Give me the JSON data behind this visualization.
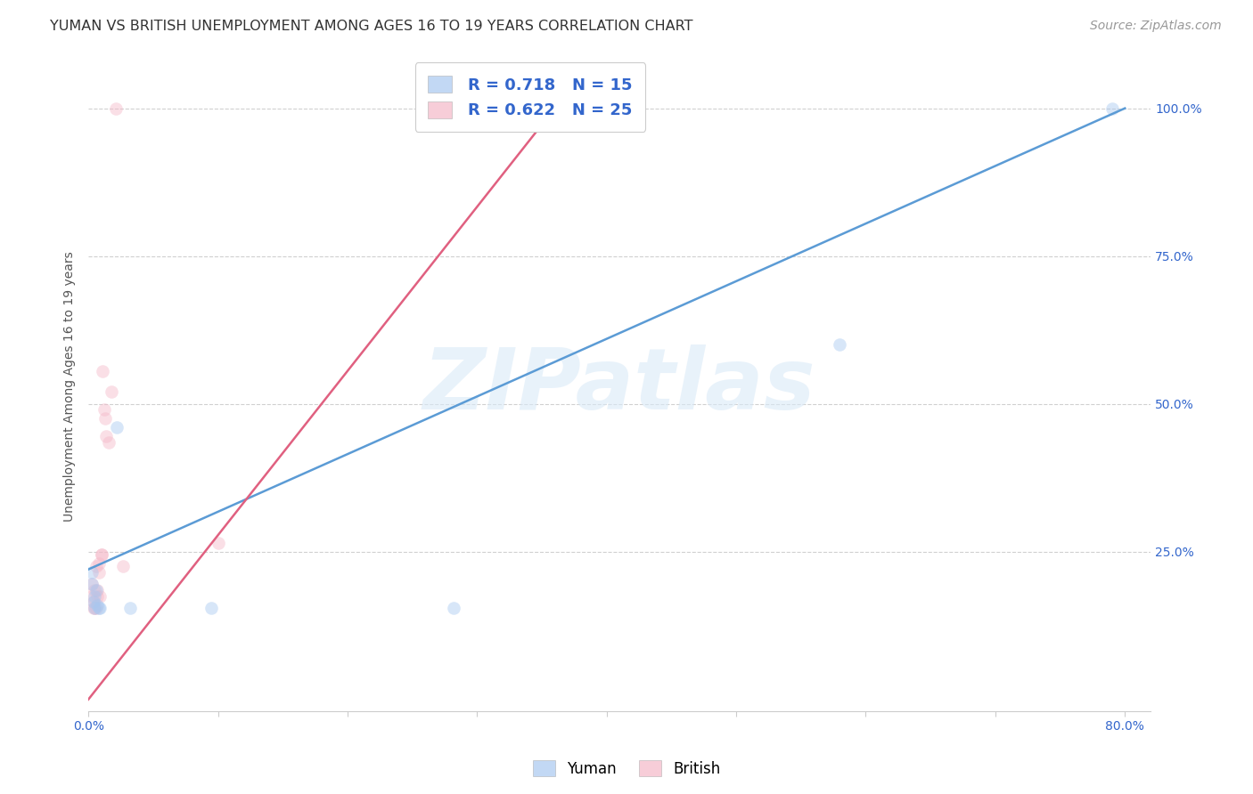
{
  "title": "YUMAN VS BRITISH UNEMPLOYMENT AMONG AGES 16 TO 19 YEARS CORRELATION CHART",
  "source": "Source: ZipAtlas.com",
  "ylabel": "Unemployment Among Ages 16 to 19 years",
  "xlim": [
    0.0,
    0.82
  ],
  "ylim": [
    -0.02,
    1.08
  ],
  "xticks": [
    0.0,
    0.1,
    0.2,
    0.3,
    0.4,
    0.5,
    0.6,
    0.7,
    0.8
  ],
  "xticklabels": [
    "0.0%",
    "",
    "",
    "",
    "",
    "",
    "",
    "",
    "80.0%"
  ],
  "ytick_positions": [
    0.25,
    0.5,
    0.75,
    1.0
  ],
  "ytick_labels": [
    "25.0%",
    "50.0%",
    "75.0%",
    "100.0%"
  ],
  "grid_color": "#d0d0d0",
  "background_color": "#ffffff",
  "watermark": "ZIPatlas",
  "yuman_color": "#a8c8f0",
  "british_color": "#f5b8c8",
  "yuman_line_color": "#5b9bd5",
  "british_line_color": "#e06080",
  "yuman_R": 0.718,
  "yuman_N": 15,
  "british_R": 0.622,
  "british_N": 25,
  "yuman_line_x0": 0.0,
  "yuman_line_y0": 0.22,
  "yuman_line_x1": 0.8,
  "yuman_line_y1": 1.0,
  "british_line_x0": 0.0,
  "british_line_y0": 0.0,
  "british_line_x1": 0.36,
  "british_line_y1": 1.0,
  "yuman_x": [
    0.003,
    0.003,
    0.004,
    0.005,
    0.006,
    0.007,
    0.008,
    0.022,
    0.032,
    0.095,
    0.282,
    0.58,
    0.79,
    0.005,
    0.009
  ],
  "yuman_y": [
    0.215,
    0.195,
    0.165,
    0.175,
    0.185,
    0.16,
    0.155,
    0.46,
    0.155,
    0.155,
    0.155,
    0.6,
    1.0,
    0.155,
    0.155
  ],
  "british_x": [
    0.003,
    0.003,
    0.004,
    0.005,
    0.005,
    0.006,
    0.007,
    0.008,
    0.008,
    0.009,
    0.01,
    0.011,
    0.012,
    0.013,
    0.014,
    0.016,
    0.018,
    0.021,
    0.027,
    0.1,
    0.36,
    0.004,
    0.007,
    0.01,
    0.006
  ],
  "british_y": [
    0.195,
    0.175,
    0.165,
    0.185,
    0.155,
    0.225,
    0.175,
    0.23,
    0.215,
    0.175,
    0.245,
    0.555,
    0.49,
    0.475,
    0.445,
    0.435,
    0.52,
    1.0,
    0.225,
    0.265,
    1.0,
    0.155,
    0.185,
    0.245,
    0.155
  ],
  "title_fontsize": 11.5,
  "axis_label_fontsize": 10,
  "tick_fontsize": 10,
  "legend_fontsize": 13,
  "source_fontsize": 10,
  "marker_size": 110,
  "marker_alpha": 0.45,
  "line_width": 1.8
}
